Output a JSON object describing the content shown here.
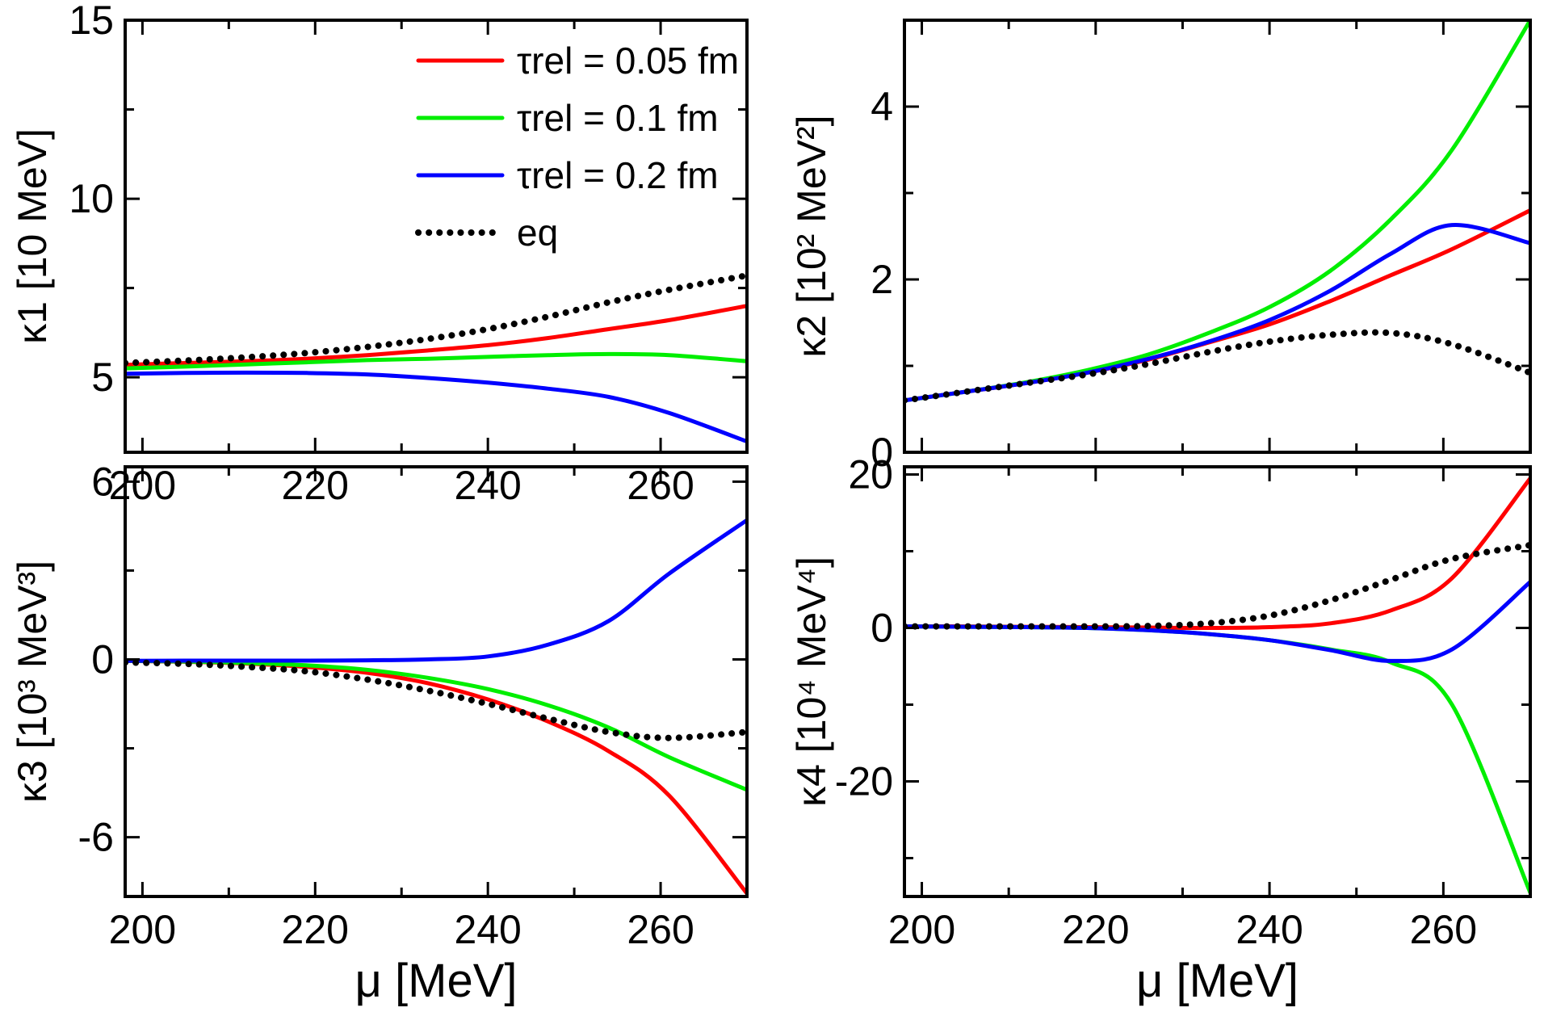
{
  "chart_data": [
    {
      "type": "line",
      "ylabel": "κ1 [10 MeV]",
      "xlabel": "",
      "xlim": [
        198,
        270
      ],
      "ylim": [
        2.9,
        15
      ],
      "xticks": [
        200,
        220,
        240,
        260
      ],
      "xtick_labels": [
        "200",
        "220",
        "240",
        "260"
      ],
      "yticks": [
        5,
        10,
        15
      ],
      "ytick_labels": [
        "5",
        "10",
        "15"
      ],
      "legend_position": "top-right",
      "x": [
        198,
        205,
        212,
        219,
        226,
        233,
        240,
        247,
        254,
        261,
        270
      ],
      "series": [
        {
          "name": "τrel = 0.05 fm",
          "color": "#ff0000",
          "style": "solid",
          "values": [
            5.35,
            5.4,
            5.45,
            5.52,
            5.62,
            5.75,
            5.9,
            6.1,
            6.35,
            6.6,
            7.0
          ]
        },
        {
          "name": "τrel = 0.1 fm",
          "color": "#00ee00",
          "style": "solid",
          "values": [
            5.25,
            5.3,
            5.36,
            5.42,
            5.48,
            5.52,
            5.57,
            5.62,
            5.65,
            5.62,
            5.45
          ]
        },
        {
          "name": "τrel = 0.2 fm",
          "color": "#0000ff",
          "style": "solid",
          "values": [
            5.1,
            5.12,
            5.13,
            5.12,
            5.08,
            4.98,
            4.85,
            4.68,
            4.45,
            4.0,
            3.2
          ]
        },
        {
          "name": "eq",
          "color": "#000000",
          "style": "dotted",
          "values": [
            5.4,
            5.47,
            5.56,
            5.68,
            5.85,
            6.07,
            6.35,
            6.7,
            7.1,
            7.45,
            7.85
          ]
        }
      ]
    },
    {
      "type": "line",
      "ylabel": "κ2 [10² MeV²]",
      "xlabel": "",
      "xlim": [
        198,
        270
      ],
      "ylim": [
        0,
        5
      ],
      "xticks": [
        200,
        220,
        240,
        260
      ],
      "xtick_labels": [
        "",
        "",
        "",
        ""
      ],
      "yticks": [
        0,
        2,
        4
      ],
      "ytick_labels": [
        "0",
        "2",
        "4"
      ],
      "x": [
        198,
        205,
        212,
        219,
        226,
        233,
        240,
        247,
        254,
        261,
        270
      ],
      "series": [
        {
          "name": "τrel = 0.05 fm",
          "color": "#ff0000",
          "style": "solid",
          "values": [
            0.6,
            0.7,
            0.8,
            0.92,
            1.07,
            1.27,
            1.48,
            1.75,
            2.05,
            2.35,
            2.8
          ]
        },
        {
          "name": "τrel = 0.1 fm",
          "color": "#00ee00",
          "style": "solid",
          "values": [
            0.6,
            0.7,
            0.81,
            0.95,
            1.13,
            1.38,
            1.68,
            2.1,
            2.7,
            3.5,
            5.0
          ]
        },
        {
          "name": "τrel = 0.2 fm",
          "color": "#0000ff",
          "style": "solid",
          "values": [
            0.6,
            0.7,
            0.8,
            0.92,
            1.08,
            1.28,
            1.53,
            1.87,
            2.3,
            2.63,
            2.42
          ]
        },
        {
          "name": "eq",
          "color": "#000000",
          "style": "dotted",
          "values": [
            0.6,
            0.7,
            0.8,
            0.9,
            1.02,
            1.16,
            1.28,
            1.36,
            1.38,
            1.25,
            0.92
          ]
        }
      ]
    },
    {
      "type": "line",
      "ylabel": "κ3 [10³ MeV³]",
      "xlabel": "μ [MeV]",
      "xlim": [
        198,
        270
      ],
      "ylim": [
        -8,
        6.5
      ],
      "xticks": [
        200,
        220,
        240,
        260
      ],
      "xtick_labels": [
        "200",
        "220",
        "240",
        "260"
      ],
      "yticks": [
        -6,
        0,
        6
      ],
      "ytick_labels": [
        "-6",
        "0",
        "6"
      ],
      "x": [
        198,
        205,
        212,
        219,
        226,
        233,
        240,
        247,
        254,
        261,
        270
      ],
      "series": [
        {
          "name": "τrel = 0.05 fm",
          "color": "#ff0000",
          "style": "solid",
          "values": [
            -0.05,
            -0.08,
            -0.14,
            -0.25,
            -0.45,
            -0.8,
            -1.35,
            -2.1,
            -3.1,
            -4.6,
            -7.9
          ]
        },
        {
          "name": "τrel = 0.1 fm",
          "color": "#00ee00",
          "style": "solid",
          "values": [
            -0.05,
            -0.07,
            -0.12,
            -0.2,
            -0.35,
            -0.62,
            -1.0,
            -1.55,
            -2.3,
            -3.3,
            -4.4
          ]
        },
        {
          "name": "τrel = 0.2 fm",
          "color": "#0000ff",
          "style": "solid",
          "values": [
            -0.05,
            -0.04,
            -0.04,
            -0.04,
            -0.03,
            0.0,
            0.1,
            0.5,
            1.3,
            2.9,
            4.7
          ]
        },
        {
          "name": "eq",
          "color": "#000000",
          "style": "dotted",
          "values": [
            -0.1,
            -0.15,
            -0.25,
            -0.4,
            -0.68,
            -1.05,
            -1.5,
            -2.0,
            -2.45,
            -2.65,
            -2.45
          ]
        }
      ]
    },
    {
      "type": "line",
      "ylabel": "κ4 [10⁴ MeV⁴]",
      "xlabel": "μ [MeV]",
      "xlim": [
        198,
        270
      ],
      "ylim": [
        -35,
        21
      ],
      "xticks": [
        200,
        220,
        240,
        260
      ],
      "xtick_labels": [
        "200",
        "220",
        "240",
        "260"
      ],
      "yticks": [
        -20,
        0,
        20
      ],
      "ytick_labels": [
        "-20",
        "0",
        "20"
      ],
      "x": [
        198,
        205,
        212,
        219,
        226,
        233,
        240,
        247,
        254,
        261,
        270
      ],
      "series": [
        {
          "name": "τrel = 0.05 fm",
          "color": "#ff0000",
          "style": "solid",
          "values": [
            0.2,
            0.2,
            0.15,
            0.1,
            0.05,
            0.0,
            0.1,
            0.6,
            2.3,
            6.5,
            19.5
          ]
        },
        {
          "name": "τrel = 0.1 fm",
          "color": "#00ee00",
          "style": "solid",
          "values": [
            0.2,
            0.15,
            0.1,
            0.0,
            -0.3,
            -0.8,
            -1.6,
            -2.8,
            -4.5,
            -10.0,
            -34.5
          ]
        },
        {
          "name": "τrel = 0.2 fm",
          "color": "#0000ff",
          "style": "solid",
          "values": [
            0.2,
            0.15,
            0.1,
            0.0,
            -0.3,
            -0.8,
            -1.6,
            -2.9,
            -4.3,
            -2.8,
            6.0
          ]
        },
        {
          "name": "eq",
          "color": "#000000",
          "style": "dotted",
          "values": [
            0.2,
            0.2,
            0.2,
            0.2,
            0.25,
            0.6,
            1.6,
            3.6,
            6.3,
            9.0,
            10.8
          ]
        }
      ]
    }
  ]
}
